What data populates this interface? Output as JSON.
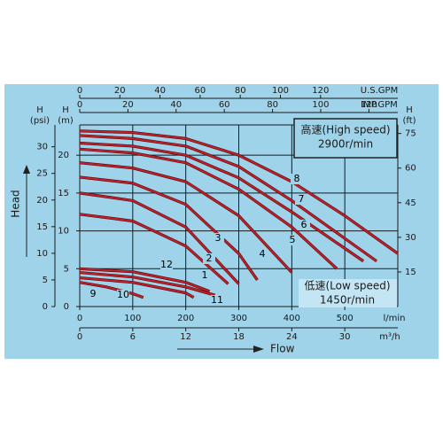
{
  "chart_data": {
    "type": "line",
    "xlim": [
      0,
      600
    ],
    "xticks": [
      0,
      100,
      200,
      300,
      400,
      500
    ],
    "xlabel": "l/min",
    "ylim": [
      0,
      24
    ],
    "yticks": [
      0,
      5,
      10,
      15,
      20
    ],
    "ylabel": [
      "H",
      "(m)"
    ],
    "grid": true,
    "y_psi": {
      "label": [
        "H",
        "(psi)"
      ],
      "lim": [
        0,
        34.1
      ],
      "ticks": [
        0,
        5,
        10,
        15,
        20,
        25,
        30
      ]
    },
    "y_ft": {
      "label": [
        "H",
        "(ft)"
      ],
      "lim": [
        0,
        78.7
      ],
      "ticks": [
        15,
        30,
        45,
        60,
        75
      ]
    },
    "x_usgpm": {
      "label": "U.S.GPM",
      "lim": [
        0,
        158.5
      ],
      "ticks": [
        0,
        20,
        40,
        60,
        80,
        100,
        120
      ]
    },
    "x_impgpm": {
      "label": "IMP.GPM",
      "lim": [
        0,
        132
      ],
      "ticks": [
        0,
        20,
        40,
        60,
        80,
        100,
        120
      ]
    },
    "x_m3h": {
      "label": "m³/h",
      "lim": [
        0,
        36
      ],
      "ticks": [
        0,
        6,
        12,
        18,
        24,
        30
      ]
    },
    "head_title": "Head",
    "flow_title": "Flow",
    "high_speed": [
      "高速(High speed)",
      "2900r/min"
    ],
    "low_speed": [
      "低速(Low speed)",
      "1450r/min"
    ],
    "color": "#c8202a",
    "series": [
      {
        "name": "1",
        "x": [
          0,
          100,
          200,
          280
        ],
        "values": [
          12.2,
          11.3,
          8,
          3
        ]
      },
      {
        "name": "2",
        "x": [
          0,
          100,
          200,
          300
        ],
        "values": [
          15,
          14,
          10.5,
          3
        ]
      },
      {
        "name": "3",
        "x": [
          0,
          100,
          200,
          300,
          335
        ],
        "values": [
          17.1,
          16.3,
          13.5,
          7,
          3.5
        ]
      },
      {
        "name": "4",
        "x": [
          0,
          100,
          200,
          300,
          400
        ],
        "values": [
          19,
          18.3,
          16.5,
          12,
          4.5
        ]
      },
      {
        "name": "5",
        "x": [
          0,
          100,
          200,
          300,
          400,
          485
        ],
        "values": [
          20.8,
          20.3,
          19,
          15.5,
          10.5,
          5
        ]
      },
      {
        "name": "6",
        "x": [
          0,
          100,
          200,
          300,
          400,
          535
        ],
        "values": [
          21.6,
          21.2,
          20,
          17,
          12.5,
          6
        ]
      },
      {
        "name": "7",
        "x": [
          0,
          100,
          200,
          300,
          400,
          500,
          560
        ],
        "values": [
          22.6,
          22.2,
          21.2,
          18.5,
          14,
          9,
          6
        ]
      },
      {
        "name": "8",
        "x": [
          0,
          100,
          200,
          300,
          400,
          500,
          600
        ],
        "values": [
          23.2,
          23,
          22.2,
          20,
          16.5,
          12,
          7
        ]
      },
      {
        "name": "9",
        "x": [
          0,
          50,
          100,
          120
        ],
        "values": [
          3.2,
          2.6,
          1.7,
          1.2
        ]
      },
      {
        "name": "10",
        "x": [
          0,
          100,
          200,
          215
        ],
        "values": [
          3.8,
          3.2,
          1.8,
          1.2
        ]
      },
      {
        "name": "11",
        "x": [
          0,
          100,
          200,
          255
        ],
        "values": [
          4.5,
          3.9,
          2.6,
          1.5
        ]
      },
      {
        "name": "12",
        "x": [
          0,
          100,
          200,
          245
        ],
        "values": [
          5,
          4.6,
          3.2,
          2
        ]
      }
    ]
  }
}
